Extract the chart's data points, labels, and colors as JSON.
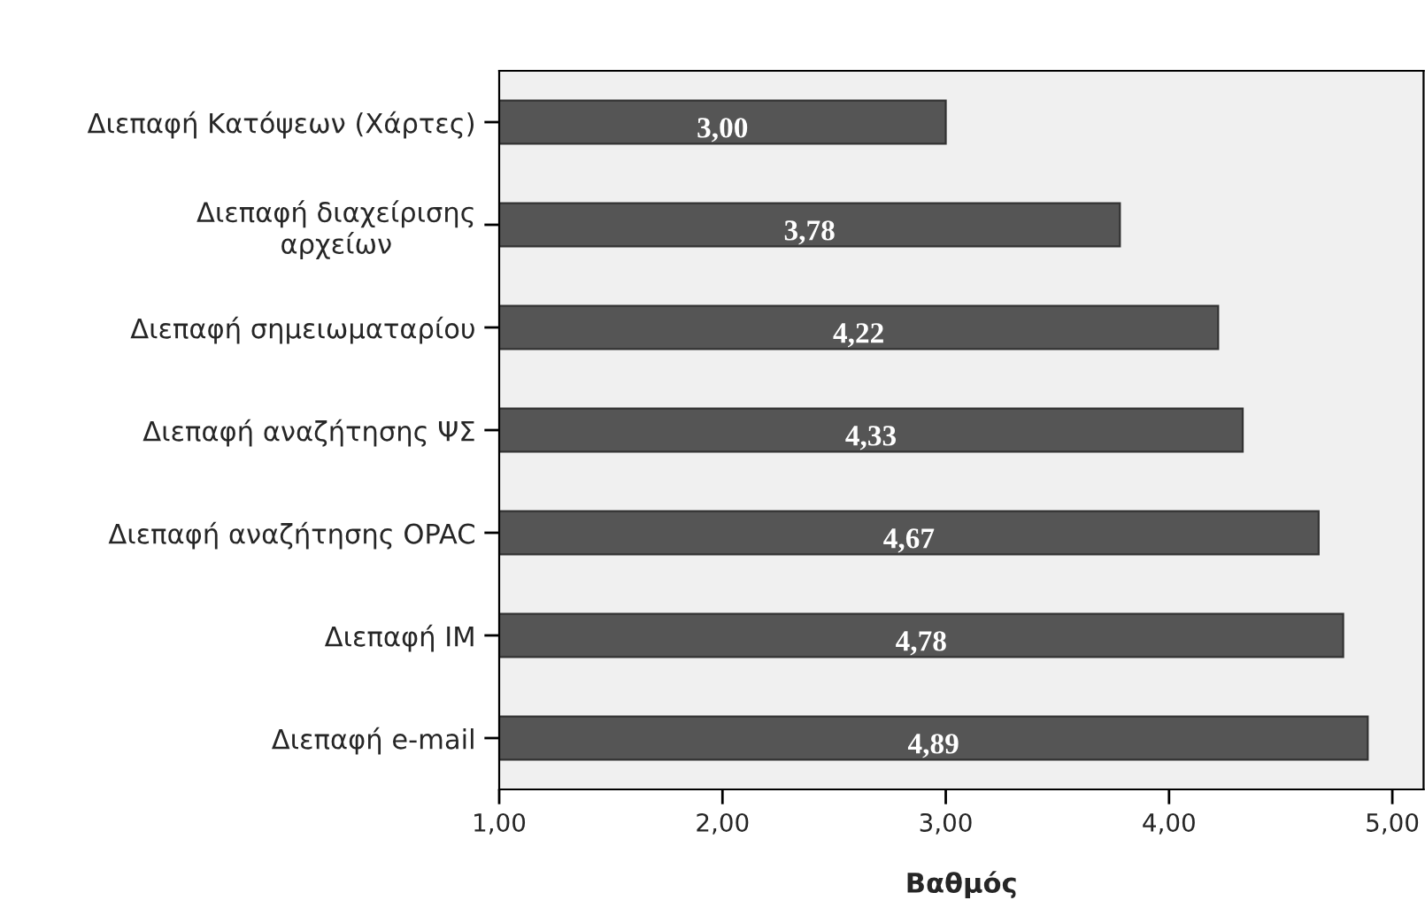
{
  "chart_data": {
    "type": "bar",
    "orientation": "horizontal",
    "xlabel": "Βαθμός",
    "categories": [
      "Διεπαφή Κατόψεων (Χάρτες)",
      "Διεπαφή διαχείρισης\nαρχείων",
      "Διεπαφή σημειωματαρίου",
      "Διεπαφή αναζήτησης ΨΣ",
      "Διεπαφή αναζήτησης OPAC",
      "Διεπαφή IM",
      "Διεπαφή e-mail"
    ],
    "values": [
      3.0,
      3.78,
      4.22,
      4.33,
      4.67,
      4.78,
      4.89
    ],
    "value_labels": [
      "3,00",
      "3,78",
      "4,22",
      "4,33",
      "4,67",
      "4,78",
      "4,89"
    ],
    "color": "#555555",
    "xlim": [
      1,
      5.14
    ],
    "xticks": [
      {
        "value": 1,
        "label": "1,00"
      },
      {
        "value": 2,
        "label": "2,00"
      },
      {
        "value": 3,
        "label": "3,00"
      },
      {
        "value": 4,
        "label": "4,00"
      },
      {
        "value": 5,
        "label": "5,00"
      }
    ],
    "grid": false,
    "legend": false
  }
}
